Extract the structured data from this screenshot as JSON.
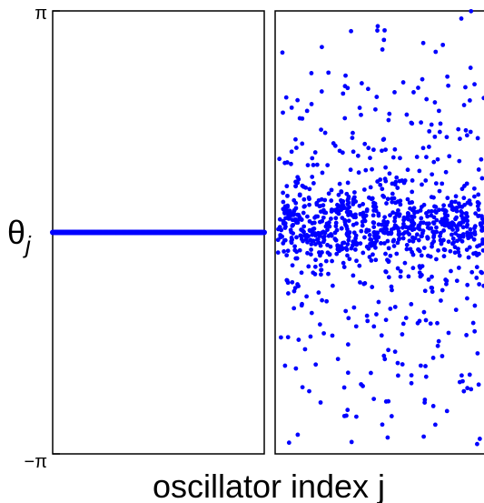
{
  "chart_data": [
    {
      "type": "scatter",
      "title": "",
      "xlabel": "",
      "ylabel": "θ",
      "ylabel_subscript": "j",
      "yticks": [
        "π",
        "−π"
      ],
      "ylim": [
        -3.1416,
        3.1416
      ],
      "grid": false,
      "legend": "none",
      "point_color": "#0000ff",
      "n_oscillators": 200,
      "synchronized_phase": 0.0,
      "description_state": "synchronized"
    },
    {
      "type": "scatter",
      "title": "",
      "xlabel": "oscillator index j",
      "ylabel": "",
      "ylim": [
        -3.1416,
        3.1416
      ],
      "grid": false,
      "legend": "none",
      "point_color": "#0000ff",
      "n_oscillators": 1000,
      "phase_distribution": {
        "dense_core_center": 0.1,
        "dense_core_spread": 0.25,
        "core_fraction": 0.55,
        "mid_spread": 1.0,
        "mid_fraction": 0.3,
        "tail_fraction": 0.15
      },
      "description_state": "partially-synchronized"
    }
  ]
}
